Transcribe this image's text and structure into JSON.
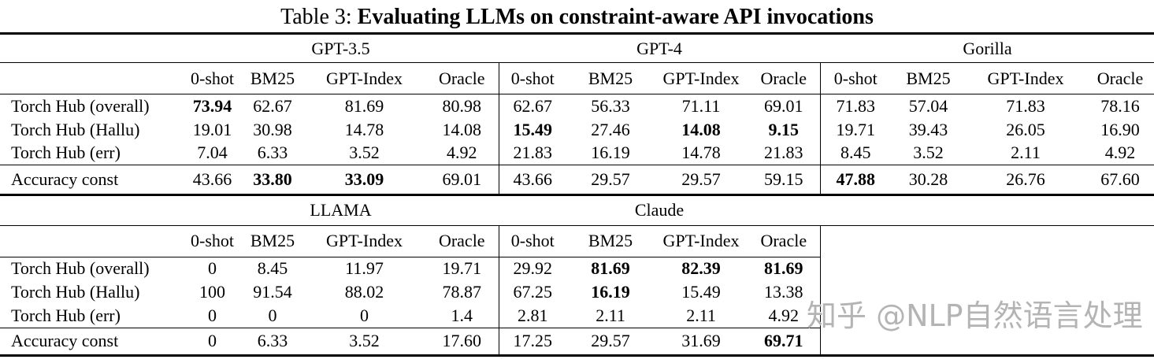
{
  "title": {
    "prefix": "Table 3:",
    "main": "Evaluating LLMs on constraint-aware API invocations"
  },
  "watermark": {
    "text": "知乎 @NLP自然语言处理",
    "color": "#b4b4b4"
  },
  "colors": {
    "background": "#ffffff",
    "text": "#000000",
    "rule": "#000000"
  },
  "tables": [
    {
      "groups": [
        "GPT-3.5",
        "GPT-4",
        "Gorilla"
      ],
      "subcolumns": [
        "0-shot",
        "BM25",
        "GPT-Index",
        "Oracle"
      ],
      "rows": [
        {
          "label": "Torch Hub (overall)",
          "values": [
            "73.94",
            "62.67",
            "81.69",
            "80.98",
            "62.67",
            "56.33",
            "71.11",
            "69.01",
            "71.83",
            "57.04",
            "71.83",
            "78.16"
          ],
          "bold": [
            0
          ]
        },
        {
          "label": "Torch Hub (Hallu)",
          "values": [
            "19.01",
            "30.98",
            "14.78",
            "14.08",
            "15.49",
            "27.46",
            "14.08",
            "9.15",
            "19.71",
            "39.43",
            "26.05",
            "16.90"
          ],
          "bold": [
            4,
            6,
            7
          ]
        },
        {
          "label": "Torch Hub (err)",
          "values": [
            "7.04",
            "6.33",
            "3.52",
            "4.92",
            "21.83",
            "16.19",
            "14.78",
            "21.83",
            "8.45",
            "3.52",
            "2.11",
            "4.92"
          ],
          "bold": []
        }
      ],
      "footer": {
        "label": "Accuracy const",
        "values": [
          "43.66",
          "33.80",
          "33.09",
          "69.01",
          "43.66",
          "29.57",
          "29.57",
          "59.15",
          "47.88",
          "30.28",
          "26.76",
          "67.60"
        ],
        "bold": [
          1,
          2,
          8
        ]
      }
    },
    {
      "groups": [
        "LLAMA",
        "Claude"
      ],
      "subcolumns": [
        "0-shot",
        "BM25",
        "GPT-Index",
        "Oracle"
      ],
      "rows": [
        {
          "label": "Torch Hub (overall)",
          "values": [
            "0",
            "8.45",
            "11.97",
            "19.71",
            "29.92",
            "81.69",
            "82.39",
            "81.69"
          ],
          "bold": [
            5,
            6,
            7
          ]
        },
        {
          "label": "Torch Hub (Hallu)",
          "values": [
            "100",
            "91.54",
            "88.02",
            "78.87",
            "67.25",
            "16.19",
            "15.49",
            "13.38"
          ],
          "bold": [
            5
          ]
        },
        {
          "label": "Torch Hub (err)",
          "values": [
            "0",
            "0",
            "0",
            "1.4",
            "2.81",
            "2.11",
            "2.11",
            "4.92"
          ],
          "bold": []
        }
      ],
      "footer": {
        "label": "Accuracy const",
        "values": [
          "0",
          "6.33",
          "3.52",
          "17.60",
          "17.25",
          "29.57",
          "31.69",
          "69.71"
        ],
        "bold": [
          7
        ]
      }
    }
  ]
}
